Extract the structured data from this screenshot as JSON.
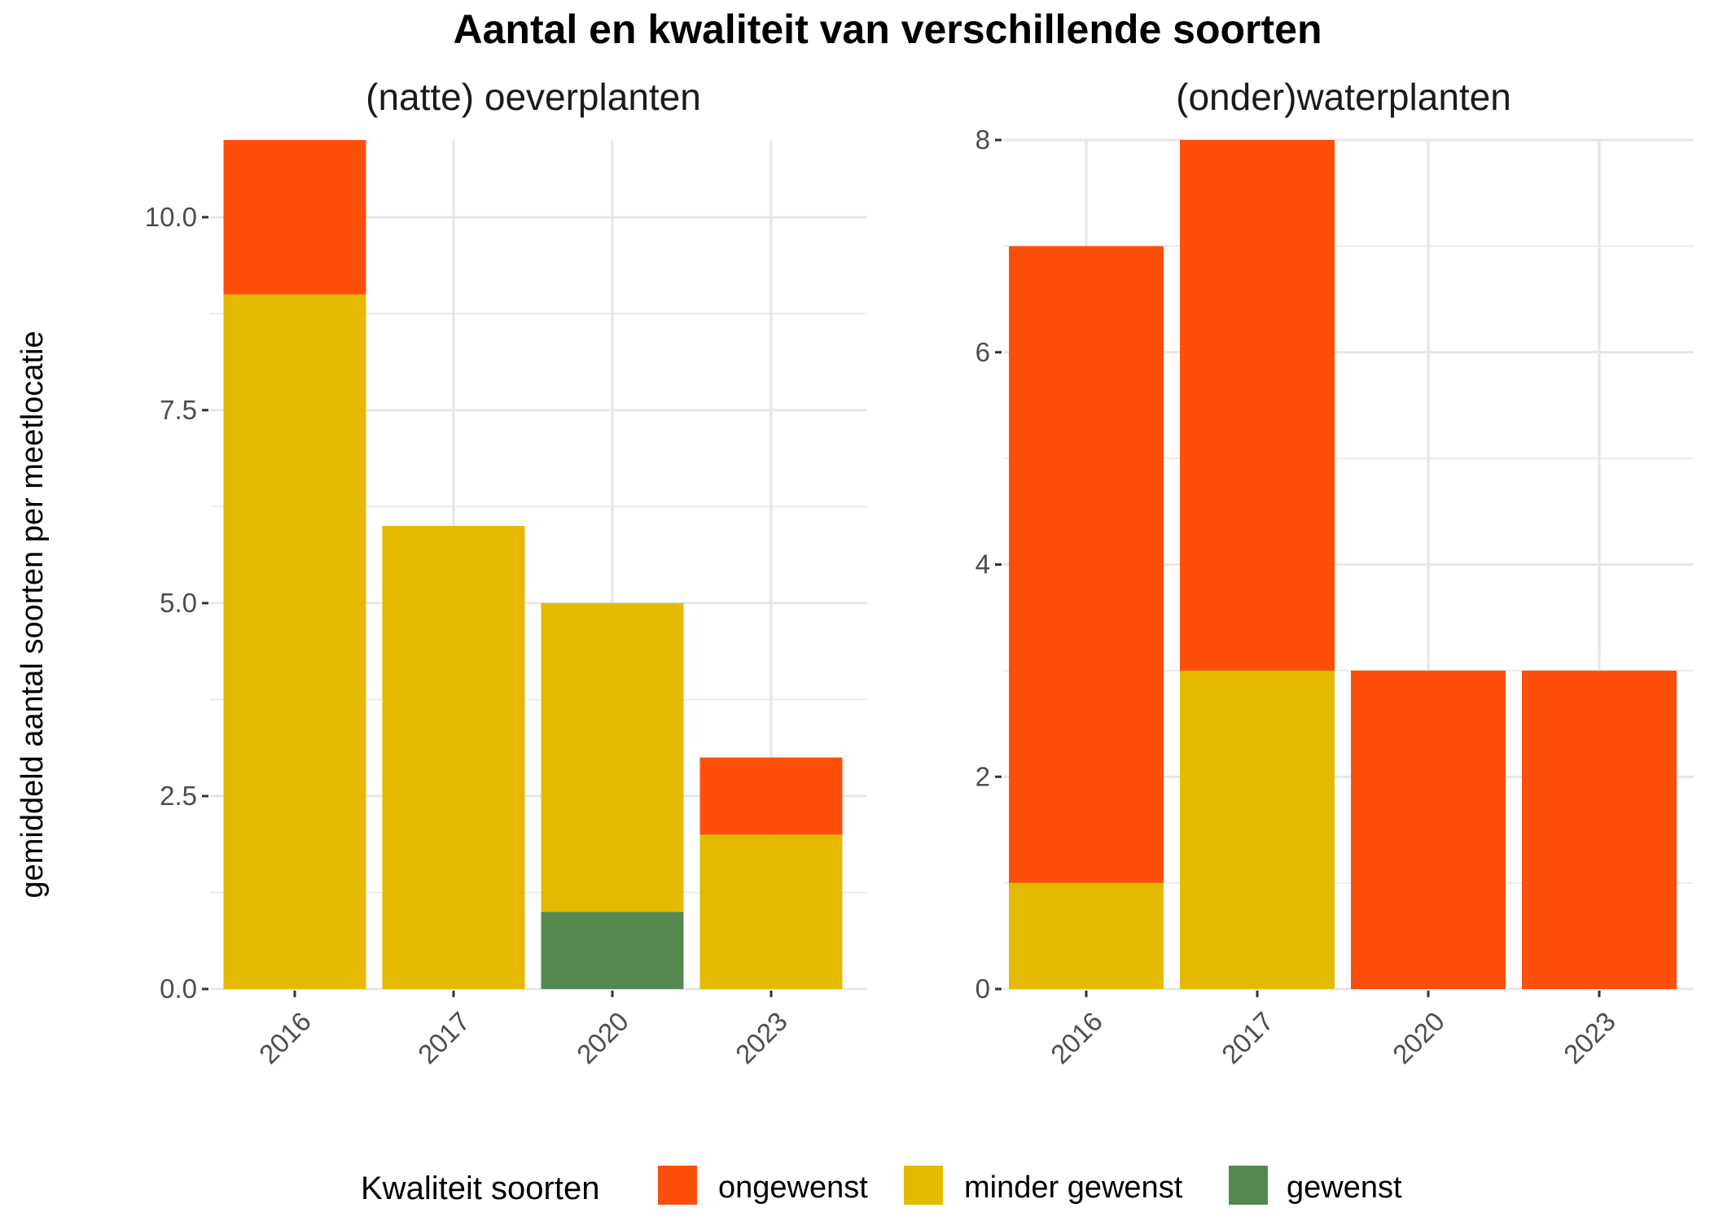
{
  "chart_data": {
    "type": "bar",
    "stacked": true,
    "title": "Aantal en kwaliteit van verschillende soorten",
    "ylabel": "gemiddeld aantal soorten per meetlocatie",
    "legend": {
      "title": "Kwaliteit soorten",
      "position": "bottom",
      "items": [
        {
          "name": "ongewenst",
          "color": "#FD4F0A"
        },
        {
          "name": "minder gewenst",
          "color": "#E4B900"
        },
        {
          "name": "gewenst",
          "color": "#54884F"
        }
      ]
    },
    "grid": true,
    "panels": [
      {
        "title": "(natte) oeverplanten",
        "categories": [
          "2016",
          "2017",
          "2020",
          "2023"
        ],
        "ylim": [
          0,
          11
        ],
        "yticks": [
          "0.0",
          "2.5",
          "5.0",
          "7.5",
          "10.0"
        ],
        "series": [
          {
            "name": "gewenst",
            "color": "#54884F",
            "values": [
              0,
              0,
              1,
              0
            ]
          },
          {
            "name": "minder gewenst",
            "color": "#E4B900",
            "values": [
              9,
              6,
              4,
              2
            ]
          },
          {
            "name": "ongewenst",
            "color": "#FD4F0A",
            "values": [
              2,
              0,
              0,
              1
            ]
          }
        ]
      },
      {
        "title": "(onder)waterplanten",
        "categories": [
          "2016",
          "2017",
          "2020",
          "2023"
        ],
        "ylim": [
          0,
          8
        ],
        "yticks": [
          "0",
          "2",
          "4",
          "6",
          "8"
        ],
        "series": [
          {
            "name": "gewenst",
            "color": "#54884F",
            "values": [
              0,
              0,
              0,
              0
            ]
          },
          {
            "name": "minder gewenst",
            "color": "#E4B900",
            "values": [
              1,
              3,
              0,
              0
            ]
          },
          {
            "name": "ongewenst",
            "color": "#FD4F0A",
            "values": [
              6,
              5,
              3,
              3
            ]
          }
        ]
      }
    ]
  }
}
